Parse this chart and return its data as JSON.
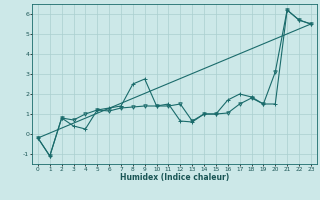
{
  "xlabel": "Humidex (Indice chaleur)",
  "background_color": "#cce8e8",
  "grid_color": "#aacfcf",
  "line_color": "#1a6b6b",
  "xlim": [
    -0.5,
    23.5
  ],
  "ylim": [
    -1.5,
    6.5
  ],
  "xticks": [
    0,
    1,
    2,
    3,
    4,
    5,
    6,
    7,
    8,
    9,
    10,
    11,
    12,
    13,
    14,
    15,
    16,
    17,
    18,
    19,
    20,
    21,
    22,
    23
  ],
  "yticks": [
    -1,
    0,
    1,
    2,
    3,
    4,
    5,
    6
  ],
  "series1_x": [
    0,
    1,
    2,
    3,
    4,
    5,
    6,
    7,
    8,
    9,
    10,
    11,
    12,
    13,
    14,
    15,
    16,
    17,
    18,
    19,
    20,
    21,
    22,
    23
  ],
  "series1_y": [
    -0.2,
    -1.1,
    0.8,
    0.7,
    1.0,
    1.2,
    1.15,
    1.3,
    1.35,
    1.4,
    1.4,
    1.4,
    1.5,
    0.65,
    1.0,
    1.0,
    1.05,
    1.5,
    1.8,
    1.5,
    3.1,
    6.2,
    5.7,
    5.5
  ],
  "series2_x": [
    0,
    1,
    2,
    3,
    4,
    5,
    6,
    7,
    8,
    9,
    10,
    11,
    12,
    13,
    14,
    15,
    16,
    17,
    18,
    19,
    20,
    21,
    22,
    23
  ],
  "series2_y": [
    -0.2,
    -1.1,
    0.8,
    0.4,
    0.25,
    1.2,
    1.3,
    1.4,
    2.5,
    2.75,
    1.4,
    1.5,
    0.65,
    0.6,
    1.0,
    1.0,
    1.7,
    2.0,
    1.85,
    1.5,
    1.5,
    6.2,
    5.7,
    5.5
  ],
  "series3_x": [
    0,
    23
  ],
  "series3_y": [
    -0.2,
    5.5
  ]
}
